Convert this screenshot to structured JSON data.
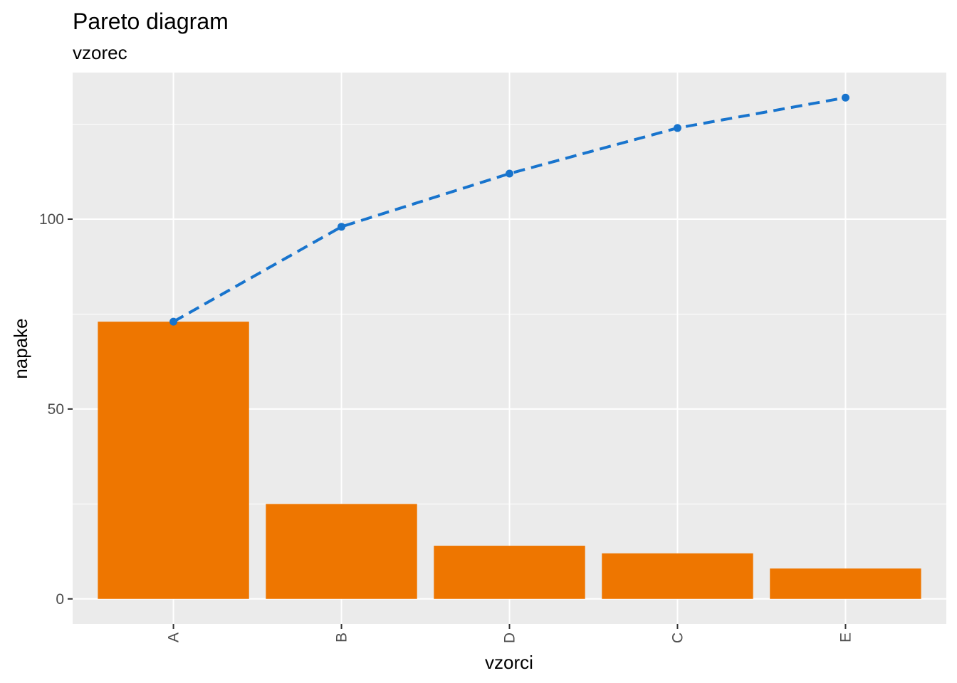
{
  "chart_data": {
    "type": "bar",
    "title": "Pareto diagram",
    "subtitle": "vzorec",
    "xlabel": "vzorci",
    "ylabel": "napake",
    "categories": [
      "A",
      "B",
      "D",
      "C",
      "E"
    ],
    "bar_values": [
      73,
      25,
      14,
      12,
      8
    ],
    "cumulative_values": [
      73,
      98,
      112,
      124,
      132
    ],
    "ylim": [
      -6.6,
      138.6
    ],
    "y_ticks": [
      0,
      50,
      100
    ],
    "y_tick_labels": [
      "0",
      "50",
      "100"
    ],
    "x_tick_label_rotation": "vertical",
    "grid": true,
    "legend": "none",
    "colors": {
      "bars": "#EE7600",
      "cumulative_line": "#1874CD",
      "panel_background": "#EBEBEB",
      "grid": "#FFFFFF",
      "tick_text": "#4D4D4D"
    }
  }
}
